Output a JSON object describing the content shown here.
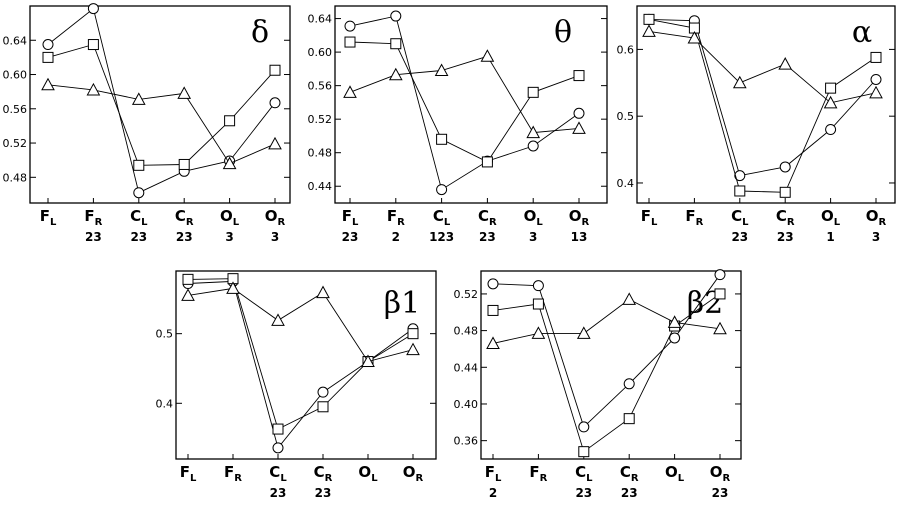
{
  "chart_data": [
    {
      "type": "line",
      "title": "δ",
      "categories": [
        {
          "main": "F",
          "sub": "L"
        },
        {
          "main": "F",
          "sub": "R"
        },
        {
          "main": "C",
          "sub": "L"
        },
        {
          "main": "C",
          "sub": "R"
        },
        {
          "main": "O",
          "sub": "L"
        },
        {
          "main": "O",
          "sub": "R"
        }
      ],
      "significance": [
        "",
        "23",
        "23",
        "23",
        "3",
        "3"
      ],
      "ylim": [
        0.45,
        0.68
      ],
      "yticks": [
        0.48,
        0.52,
        0.56,
        0.6,
        0.64
      ],
      "ytick_labels": [
        "0.48",
        "0.52",
        "0.56",
        "0.60",
        "0.64"
      ],
      "series": [
        {
          "marker": "circle",
          "values": [
            0.635,
            0.677,
            0.462,
            0.487,
            0.499,
            0.567
          ]
        },
        {
          "marker": "square",
          "values": [
            0.62,
            0.635,
            0.494,
            0.495,
            0.546,
            0.605
          ]
        },
        {
          "marker": "triangle",
          "values": [
            0.588,
            0.582,
            0.571,
            0.578,
            0.496,
            0.519
          ]
        }
      ]
    },
    {
      "type": "line",
      "title": "θ",
      "categories": [
        {
          "main": "F",
          "sub": "L"
        },
        {
          "main": "F",
          "sub": "R"
        },
        {
          "main": "C",
          "sub": "L"
        },
        {
          "main": "C",
          "sub": "R"
        },
        {
          "main": "O",
          "sub": "L"
        },
        {
          "main": "O",
          "sub": "R"
        }
      ],
      "significance": [
        "23",
        "2",
        "123",
        "23",
        "3",
        "13"
      ],
      "ylim": [
        0.42,
        0.655
      ],
      "yticks": [
        0.44,
        0.48,
        0.52,
        0.56,
        0.6,
        0.64
      ],
      "ytick_labels": [
        "0.44",
        "0.48",
        "0.52",
        "0.56",
        "0.60",
        "0.64"
      ],
      "series": [
        {
          "marker": "circle",
          "values": [
            0.631,
            0.643,
            0.436,
            0.47,
            0.488,
            0.527
          ]
        },
        {
          "marker": "square",
          "values": [
            0.612,
            0.61,
            0.496,
            0.469,
            0.552,
            0.572
          ]
        },
        {
          "marker": "triangle",
          "values": [
            0.552,
            0.573,
            0.578,
            0.595,
            0.504,
            0.509
          ]
        }
      ]
    },
    {
      "type": "line",
      "title": "α",
      "categories": [
        {
          "main": "F",
          "sub": "L"
        },
        {
          "main": "F",
          "sub": "R"
        },
        {
          "main": "C",
          "sub": "L"
        },
        {
          "main": "C",
          "sub": "R"
        },
        {
          "main": "O",
          "sub": "L"
        },
        {
          "main": "O",
          "sub": "R"
        }
      ],
      "significance": [
        "",
        "",
        "23",
        "23",
        "1",
        "3"
      ],
      "ylim": [
        0.37,
        0.665
      ],
      "yticks": [
        0.4,
        0.5,
        0.6
      ],
      "ytick_labels": [
        "0.4",
        "0.5",
        "0.6"
      ],
      "series": [
        {
          "marker": "circle",
          "values": [
            0.645,
            0.643,
            0.411,
            0.424,
            0.48,
            0.555
          ]
        },
        {
          "marker": "square",
          "values": [
            0.645,
            0.632,
            0.388,
            0.386,
            0.542,
            0.588
          ]
        },
        {
          "marker": "triangle",
          "values": [
            0.627,
            0.617,
            0.55,
            0.578,
            0.52,
            0.535
          ]
        }
      ]
    },
    {
      "type": "line",
      "title": "β1",
      "categories": [
        {
          "main": "F",
          "sub": "L"
        },
        {
          "main": "F",
          "sub": "R"
        },
        {
          "main": "C",
          "sub": "L"
        },
        {
          "main": "C",
          "sub": "R"
        },
        {
          "main": "O",
          "sub": "L"
        },
        {
          "main": "O",
          "sub": "R"
        }
      ],
      "significance": [
        "",
        "",
        "23",
        "23",
        "",
        ""
      ],
      "ylim": [
        0.32,
        0.59
      ],
      "yticks": [
        0.4,
        0.5
      ],
      "ytick_labels": [
        "0.4",
        "0.5"
      ],
      "series": [
        {
          "marker": "circle",
          "values": [
            0.572,
            0.575,
            0.336,
            0.416,
            0.46,
            0.507
          ]
        },
        {
          "marker": "square",
          "values": [
            0.578,
            0.579,
            0.363,
            0.395,
            0.46,
            0.5
          ]
        },
        {
          "marker": "triangle",
          "values": [
            0.555,
            0.565,
            0.519,
            0.559,
            0.46,
            0.477
          ]
        }
      ]
    },
    {
      "type": "line",
      "title": "β2",
      "categories": [
        {
          "main": "F",
          "sub": "L"
        },
        {
          "main": "F",
          "sub": "R"
        },
        {
          "main": "C",
          "sub": "L"
        },
        {
          "main": "C",
          "sub": "R"
        },
        {
          "main": "O",
          "sub": "L"
        },
        {
          "main": "O",
          "sub": "R"
        }
      ],
      "significance": [
        "2",
        "",
        "23",
        "23",
        "",
        "23"
      ],
      "ylim": [
        0.34,
        0.545
      ],
      "yticks": [
        0.36,
        0.4,
        0.44,
        0.48,
        0.52
      ],
      "ytick_labels": [
        "0.36",
        "0.40",
        "0.44",
        "0.48",
        "0.52"
      ],
      "series": [
        {
          "marker": "circle",
          "values": [
            0.531,
            0.529,
            0.375,
            0.422,
            0.472,
            0.541
          ]
        },
        {
          "marker": "square",
          "values": [
            0.502,
            0.509,
            0.348,
            0.384,
            0.485,
            0.52
          ]
        },
        {
          "marker": "triangle",
          "values": [
            0.466,
            0.477,
            0.477,
            0.514,
            0.489,
            0.482
          ]
        }
      ]
    }
  ]
}
